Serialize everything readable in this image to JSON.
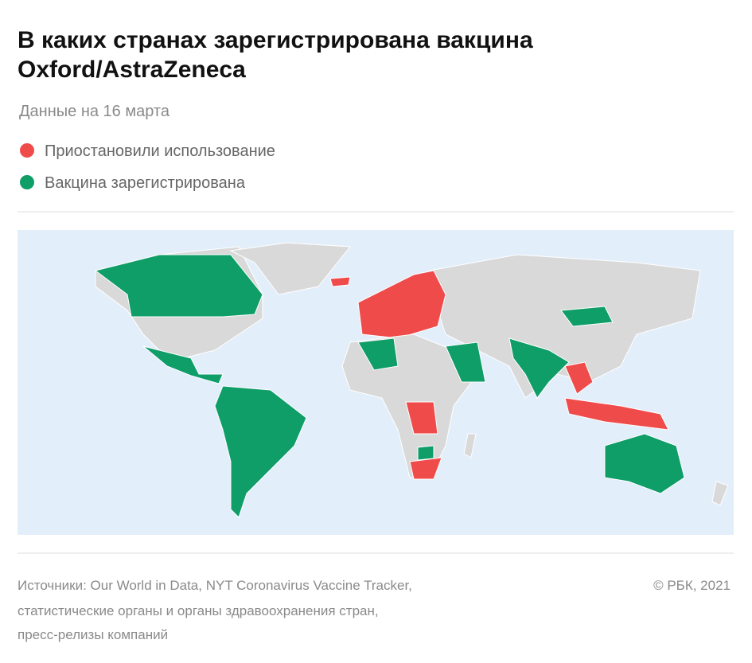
{
  "header": {
    "title_lines": [
      "В каких странах зарегистрирована вакцина",
      "Oxford/AstraZeneca"
    ],
    "subtitle": "Данные на 16 марта"
  },
  "legend": [
    {
      "label": "Приостановили использование",
      "color": "#f04b4b"
    },
    {
      "label": "Вакцина зарегистрирована",
      "color": "#0f9d68"
    }
  ],
  "footer": {
    "sources": [
      "Источники: Our World in Data, NYT Coronavirus Vaccine Tracker,",
      "статистические органы и органы здравоохранения стран,",
      "пресс-релизы компаний"
    ],
    "copyright": "© РБК, 2021"
  }
}
